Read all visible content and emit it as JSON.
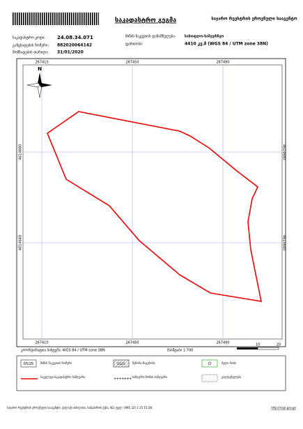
{
  "header": {
    "title": "საკადასტრო გეგმა",
    "agency": "საჯარო რეესტრის ეროვნული სააგენტო",
    "fields": [
      {
        "label": "საკადასტრო კოდი:",
        "value": "24.08.34.071"
      },
      {
        "label": "განცხადების ნომერი:",
        "value": "882020064142"
      },
      {
        "label": "მომზადების თარიღი:",
        "value": "31/01/2020"
      },
      {
        "label": "მიწის ნაკვეთის დანიშნულება:",
        "value": "სასოფლო-სამეურნეო"
      },
      {
        "label": "ფართობი:",
        "value": "4410 კვ.მ (WGS 84 / UTM zone 38N)"
      }
    ]
  },
  "map": {
    "x_ticks_top": [
      "267410",
      "267450",
      "267490"
    ],
    "x_ticks_bottom": [
      "267410",
      "267450",
      "267490"
    ],
    "y_ticks_left": [
      "4614680",
      "4614640"
    ],
    "y_ticks_right": [
      "4614680",
      "4614640"
    ],
    "north": "N",
    "crs": "კოორდინატთა სისტემა: WGS 84 / UTM zone 38N",
    "scale": "მასშტაბი 1:700",
    "scale_bar": [
      "10",
      "20"
    ]
  },
  "legend": [
    {
      "symbol": "05/25",
      "label": "მიწის ნაკვეთის ნომერი"
    },
    {
      "symbol": "0525",
      "label": "შენობა-ნაგებობა"
    },
    {
      "label": "ძელი ბოძი"
    },
    {
      "label": "საკვლევი საკადასტრო საზღვარი"
    },
    {
      "label": "საზღვრო ზონის საზღვარი"
    },
    {
      "label": "ვალდებულება"
    }
  ],
  "footer": {
    "address": "საჯარო რეესტრის ეროვნული სააგენტო, ქალაქი თბილისი, სანაპიროს ქუჩა, N2; ტელ: (995 32) 2 25 15 28;",
    "url": "http://napr.gov.ge"
  }
}
